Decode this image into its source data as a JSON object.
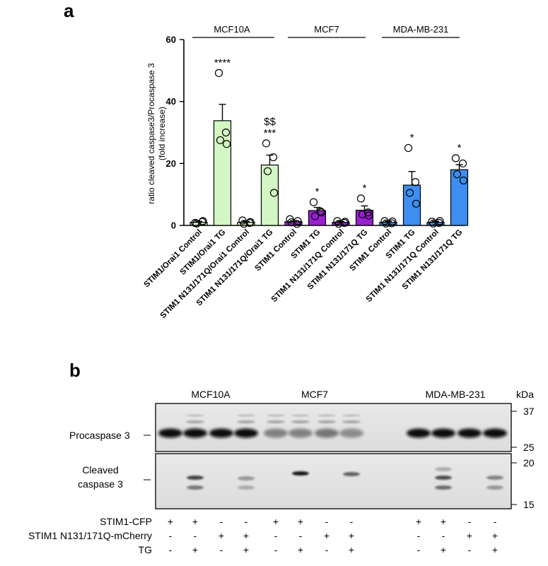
{
  "panel_a": {
    "letter": "a",
    "groups": [
      "MCF10A",
      "MCF7",
      "MDA-MB-231"
    ]
  },
  "chart_data": {
    "type": "bar",
    "title": "",
    "xlabel": "",
    "ylabel": "ratio cleaved caspase3/Procaspase 3",
    "ylabel2": "(fold increase)",
    "ylim": [
      0,
      60
    ],
    "yticks": [
      0,
      20,
      40,
      60
    ],
    "categories": [
      "STIM1/Orai1 Control",
      "STIM1/Orai1 TG",
      "STIM1 N131/171Q/Orai1 Control",
      "STIM1 N131/171Q/Orai1 TG",
      "STIM1 Control",
      "STIM1 TG",
      "STIM1 N131/171Q Control",
      "STIM1 N131/171Q TG",
      "STIM1 Control",
      "STIM1 TG",
      "STIM1 N131/171Q Control",
      "STIM1 N131/171Q TG"
    ],
    "values": [
      1.0,
      33.8,
      1.0,
      19.5,
      1.2,
      4.8,
      1.0,
      4.9,
      1.0,
      13.0,
      1.0,
      18.0
    ],
    "errors": [
      0.3,
      5.3,
      0.3,
      3.2,
      0.3,
      1.0,
      0.3,
      1.4,
      0.3,
      4.4,
      0.3,
      1.6
    ],
    "colors": [
      "#d4f5c4",
      "#d4f5c4",
      "#d4f5c4",
      "#d4f5c4",
      "#9a1fd0",
      "#9a1fd0",
      "#9a1fd0",
      "#9a1fd0",
      "#3d8ef0",
      "#3d8ef0",
      "#3d8ef0",
      "#3d8ef0"
    ],
    "points": [
      [
        0.8,
        1.1,
        0.6,
        1.4
      ],
      [
        49.2,
        30.0,
        27.5,
        26.3
      ],
      [
        1.6,
        0.8,
        0.5,
        1.1
      ],
      [
        26.5,
        22.0,
        17.5,
        10.5
      ],
      [
        2.0,
        0.5,
        1.0,
        1.4
      ],
      [
        7.5,
        4.5,
        3.0,
        4.2
      ],
      [
        1.4,
        0.8,
        0.5,
        1.2
      ],
      [
        8.7,
        4.2,
        3.6,
        3.2
      ],
      [
        1.4,
        0.7,
        0.6,
        1.3
      ],
      [
        25.0,
        14.0,
        10.5,
        7.0
      ],
      [
        1.2,
        0.8,
        0.6,
        1.4
      ],
      [
        21.7,
        20.0,
        16.5,
        14.5
      ]
    ],
    "significance": [
      {
        "index": 1,
        "lines": [
          "****"
        ]
      },
      {
        "index": 3,
        "lines": [
          "$$",
          "***"
        ]
      },
      {
        "index": 5,
        "lines": [
          "*"
        ]
      },
      {
        "index": 7,
        "lines": [
          "*"
        ]
      },
      {
        "index": 9,
        "lines": [
          "*"
        ]
      },
      {
        "index": 11,
        "lines": [
          "*"
        ]
      }
    ]
  },
  "panel_b": {
    "letter": "b",
    "cell_lines": [
      "MCF10A",
      "MCF7",
      "MDA-MB-231"
    ],
    "kda_header": "kDa",
    "markers_top": [
      "37",
      "25"
    ],
    "markers_bottom": [
      "20",
      "15"
    ],
    "procaspase_label": "Procaspase 3",
    "cleaved_label_line1": "Cleaved",
    "cleaved_label_line2": "caspase  3",
    "rows": [
      {
        "label": "STIM1-CFP",
        "values": [
          "+",
          "+",
          "-",
          "-",
          "+",
          "+",
          "-",
          "-",
          "+",
          "+",
          "-",
          "-"
        ]
      },
      {
        "label": "STIM1 N131/171Q-mCherry",
        "values": [
          "-",
          "-",
          "+",
          "+",
          "-",
          "-",
          "+",
          "+",
          "-",
          "-",
          "+",
          "+"
        ]
      },
      {
        "label": "TG",
        "values": [
          "-",
          "+",
          "-",
          "+",
          "-",
          "+",
          "-",
          "+",
          "-",
          "+",
          "-",
          "+"
        ]
      }
    ]
  }
}
